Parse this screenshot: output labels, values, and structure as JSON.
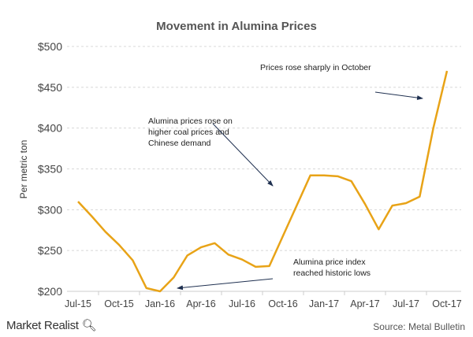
{
  "chart_data": {
    "type": "line",
    "title": "Movement  in  Alumina  Prices",
    "ylabel": "Per metric ton",
    "xlabel": "",
    "ylim": [
      200,
      500
    ],
    "yticks": [
      "$200",
      "$250",
      "$300",
      "$350",
      "$400",
      "$450",
      "$500"
    ],
    "ytick_values": [
      200,
      250,
      300,
      350,
      400,
      450,
      500
    ],
    "xticks": [
      "Jul-15",
      "Oct-15",
      "Jan-16",
      "Apr-16",
      "Jul-16",
      "Oct-16",
      "Jan-17",
      "Apr-17",
      "Jul-17",
      "Oct-17"
    ],
    "grid": true,
    "color": "#E8A317",
    "x": [
      "Jul-15",
      "Aug-15",
      "Sep-15",
      "Oct-15",
      "Nov-15",
      "Dec-15",
      "Jan-16",
      "Feb-16",
      "Mar-16",
      "Apr-16",
      "May-16",
      "Jun-16",
      "Jul-16",
      "Aug-16",
      "Sep-16",
      "Oct-16",
      "Nov-16",
      "Dec-16",
      "Jan-17",
      "Feb-17",
      "Mar-17",
      "Apr-17",
      "May-17",
      "Jun-17",
      "Jul-17",
      "Aug-17",
      "Sep-17",
      "Oct-17"
    ],
    "values": [
      310,
      292,
      273,
      257,
      238,
      204,
      200,
      217,
      244,
      254,
      259,
      245,
      239,
      230,
      231,
      268,
      305,
      342,
      342,
      341,
      335,
      307,
      276,
      305,
      308,
      316,
      400,
      470
    ],
    "annotations": [
      {
        "text": [
          "Prices rose sharply in October"
        ],
        "points_to": "Sep-17"
      },
      {
        "text": [
          "Alumina prices rose on",
          "higher coal prices and",
          "Chinese demand"
        ],
        "points_to": "Oct-16"
      },
      {
        "text": [
          "Alumina price index",
          "reached historic lows"
        ],
        "points_to": "Jan-16"
      }
    ]
  },
  "footer": {
    "logo": "Market Realist",
    "source": "Source: Metal Bulletin"
  }
}
